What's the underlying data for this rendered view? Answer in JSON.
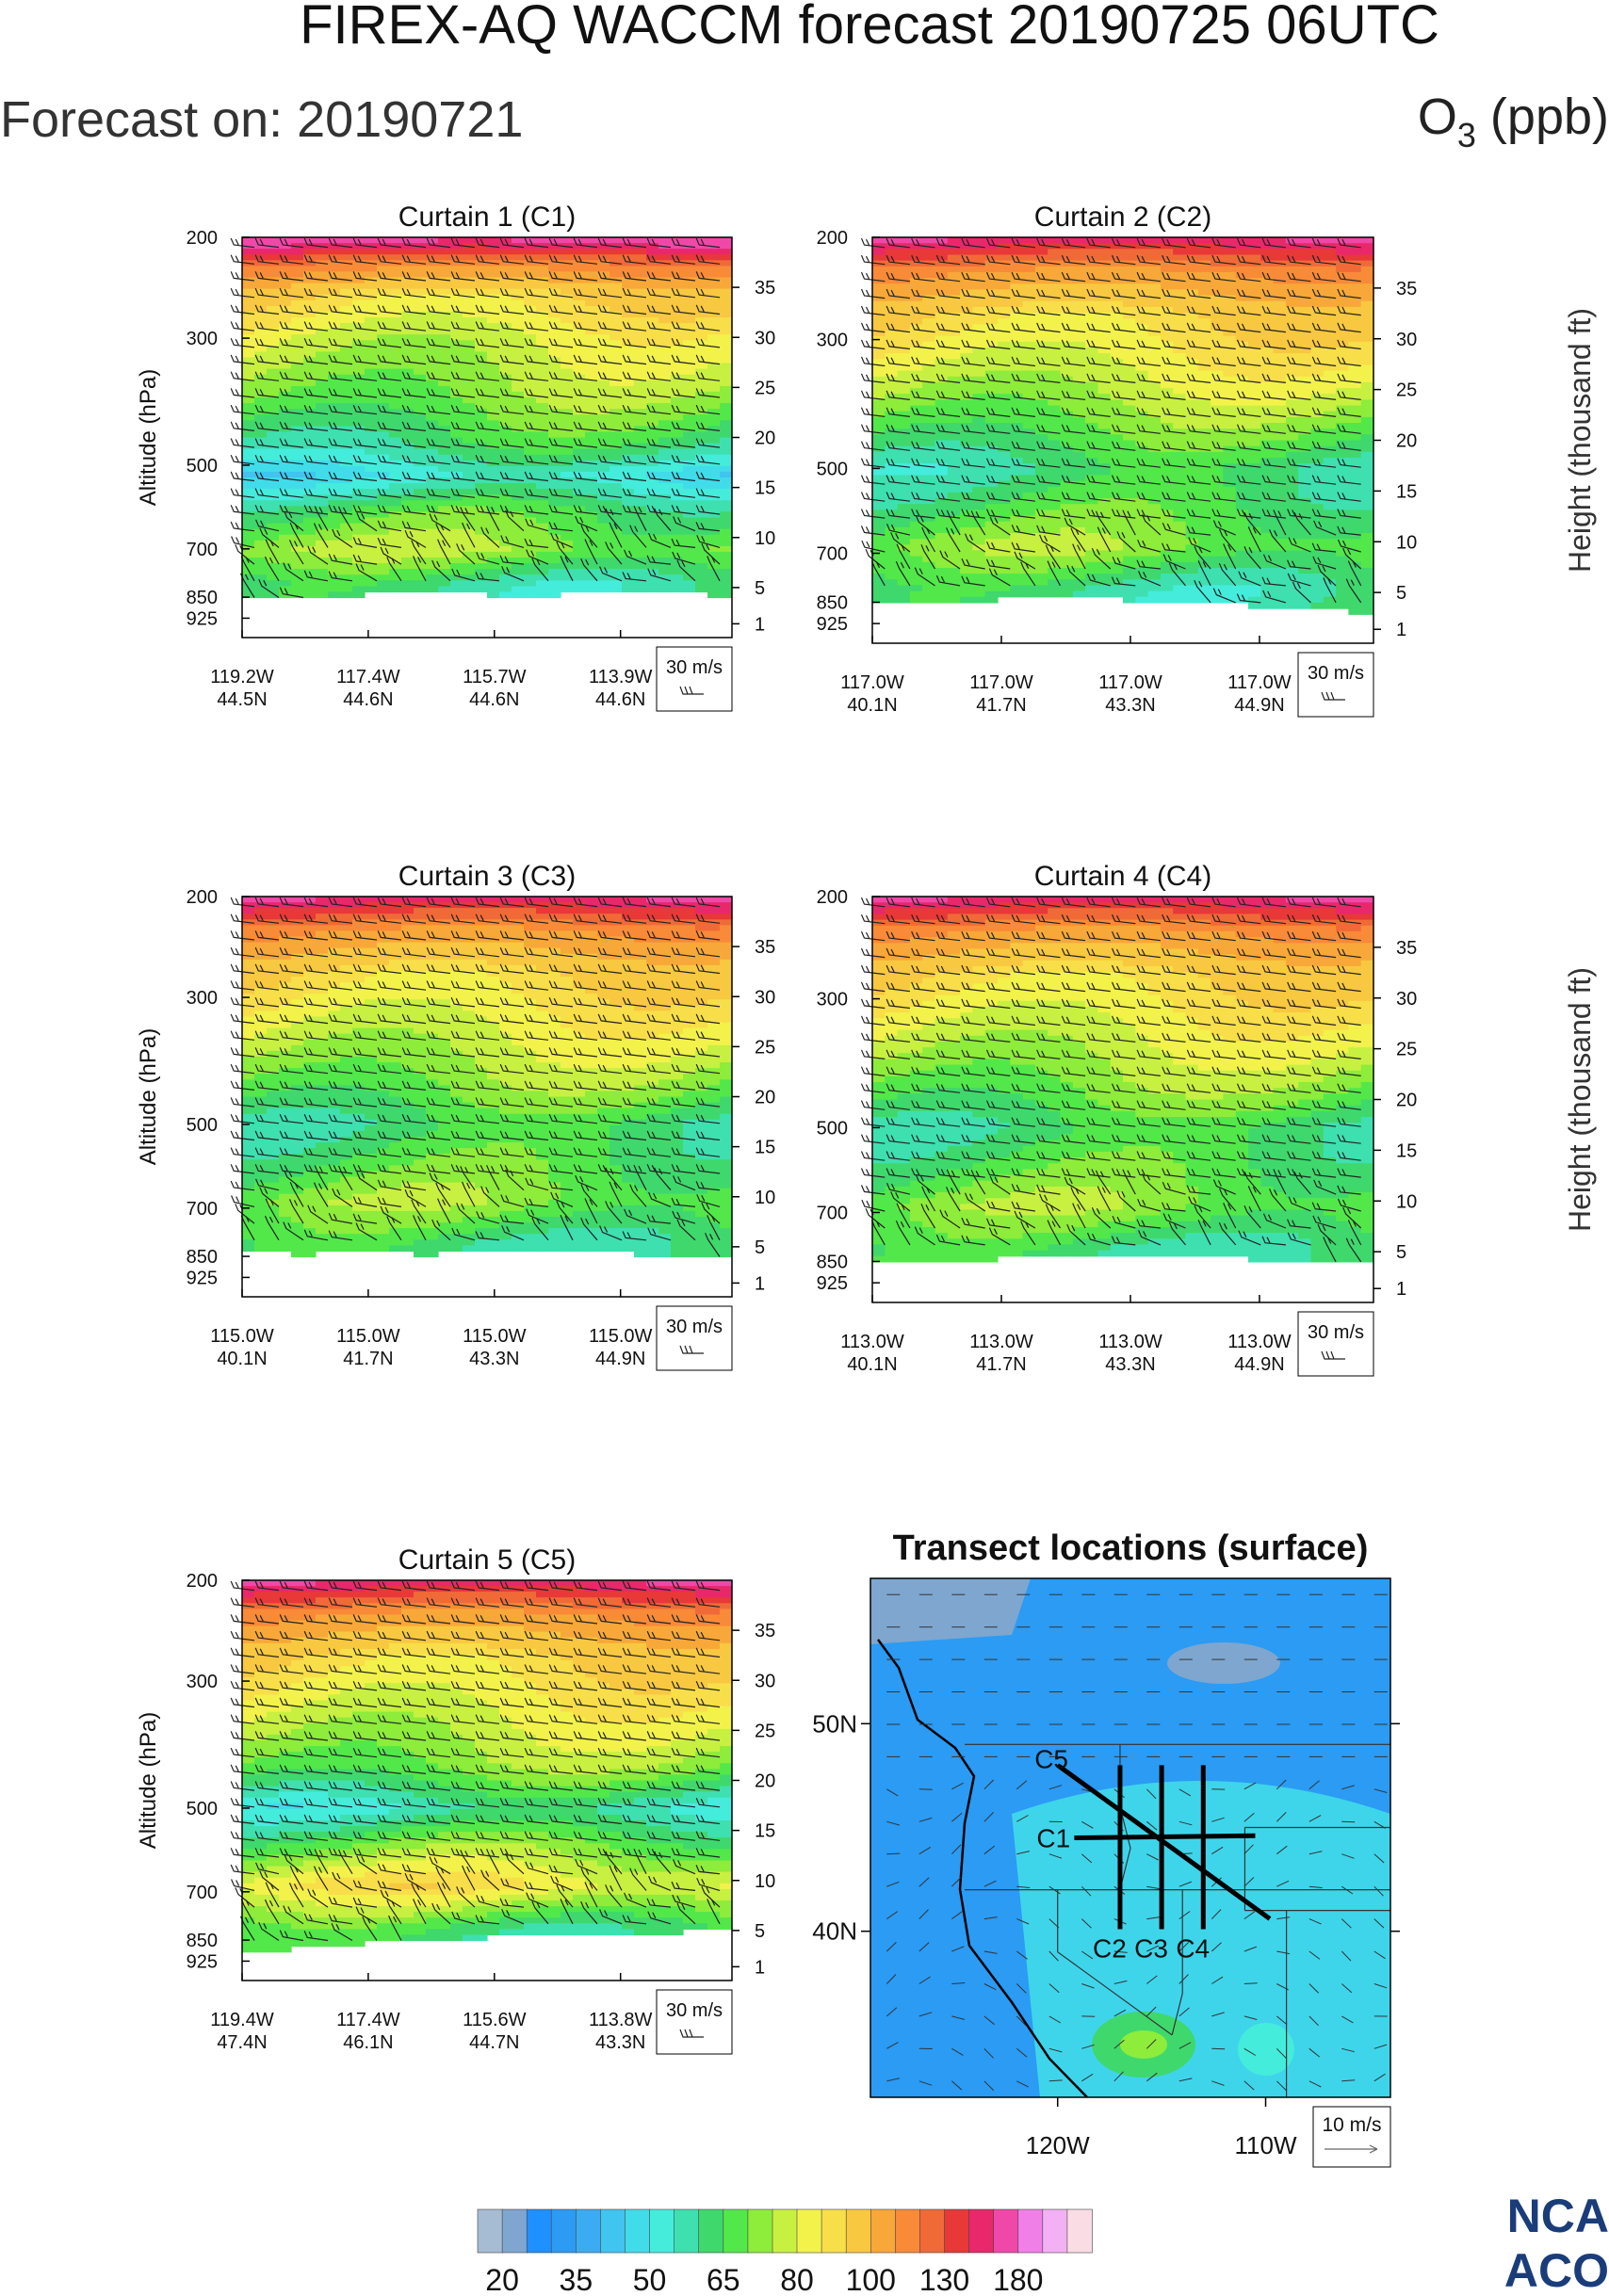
{
  "header": {
    "title": "FIREX-AQ WACCM forecast 20190725 06UTC",
    "forecast_on": "Forecast on: 20190721",
    "species_main": "O",
    "species_sub": "3",
    "species_unit": " (ppb)"
  },
  "chart_data": [
    {
      "type": "heatmap",
      "id": "C1",
      "title": "Curtain 1 (C1)",
      "ylabel": "Altitude (hPa)",
      "y2label": "",
      "pressure_ticks": [
        "200",
        "300",
        "500",
        "700",
        "850",
        "925"
      ],
      "pressure_values": [
        200,
        300,
        500,
        700,
        850,
        925
      ],
      "height_ticks": [
        "35",
        "30",
        "25",
        "20",
        "15",
        "10",
        "5",
        "1"
      ],
      "height_values": [
        35,
        30,
        25,
        20,
        15,
        10,
        5,
        1
      ],
      "x_ticks": [
        [
          "119.2W",
          "44.5N"
        ],
        [
          "117.4W",
          "44.6N"
        ],
        [
          "115.7W",
          "44.6N"
        ],
        [
          "113.9W",
          "44.6N"
        ]
      ],
      "wind_key": "30 m/s",
      "surface_hpa": [
        855,
        860,
        858,
        850,
        845,
        840,
        835,
        830,
        835,
        840,
        845,
        850,
        845,
        838,
        832,
        828,
        825,
        830,
        835,
        850
      ],
      "o3_profile": [
        {
          "p": 200,
          "ppb": 150
        },
        {
          "p": 220,
          "ppb": 110
        },
        {
          "p": 250,
          "ppb": 80
        },
        {
          "p": 300,
          "ppb": 70
        },
        {
          "p": 380,
          "ppb": 62
        },
        {
          "p": 460,
          "ppb": 52
        },
        {
          "p": 520,
          "ppb": 40
        },
        {
          "p": 600,
          "ppb": 55
        },
        {
          "p": 700,
          "ppb": 64
        },
        {
          "p": 800,
          "ppb": 50
        },
        {
          "p": 925,
          "ppb": 48
        }
      ]
    },
    {
      "type": "heatmap",
      "id": "C2",
      "title": "Curtain 2 (C2)",
      "ylabel": "",
      "y2label": "Height (thousand ft)",
      "pressure_ticks": [
        "200",
        "300",
        "500",
        "700",
        "850",
        "925"
      ],
      "pressure_values": [
        200,
        300,
        500,
        700,
        850,
        925
      ],
      "height_ticks": [
        "35",
        "30",
        "25",
        "20",
        "15",
        "10",
        "5",
        "1"
      ],
      "height_values": [
        35,
        30,
        25,
        20,
        15,
        10,
        5,
        1
      ],
      "x_ticks": [
        [
          "117.0W",
          "40.1N"
        ],
        [
          "117.0W",
          "41.7N"
        ],
        [
          "117.0W",
          "43.3N"
        ],
        [
          "117.0W",
          "44.9N"
        ]
      ],
      "wind_key": "30 m/s",
      "surface_hpa": [
        845,
        848,
        850,
        848,
        845,
        840,
        838,
        835,
        835,
        838,
        842,
        846,
        850,
        855,
        858,
        862,
        866,
        870,
        880,
        900
      ],
      "o3_profile": [
        {
          "p": 200,
          "ppb": 140
        },
        {
          "p": 230,
          "ppb": 100
        },
        {
          "p": 270,
          "ppb": 80
        },
        {
          "p": 330,
          "ppb": 72
        },
        {
          "p": 420,
          "ppb": 60
        },
        {
          "p": 500,
          "ppb": 50
        },
        {
          "p": 580,
          "ppb": 55
        },
        {
          "p": 680,
          "ppb": 62
        },
        {
          "p": 800,
          "ppb": 50
        },
        {
          "p": 925,
          "ppb": 48
        }
      ]
    },
    {
      "type": "heatmap",
      "id": "C3",
      "title": "Curtain 3 (C3)",
      "ylabel": "Altitude (hPa)",
      "y2label": "",
      "pressure_ticks": [
        "200",
        "300",
        "500",
        "700",
        "850",
        "925"
      ],
      "pressure_values": [
        200,
        300,
        500,
        700,
        850,
        925
      ],
      "height_ticks": [
        "35",
        "30",
        "25",
        "20",
        "15",
        "10",
        "5",
        "1"
      ],
      "height_values": [
        35,
        30,
        25,
        20,
        15,
        10,
        5,
        1
      ],
      "x_ticks": [
        [
          "115.0W",
          "40.1N"
        ],
        [
          "115.0W",
          "41.7N"
        ],
        [
          "115.0W",
          "43.3N"
        ],
        [
          "115.0W",
          "44.9N"
        ]
      ],
      "wind_key": "30 m/s",
      "surface_hpa": [
        835,
        840,
        842,
        840,
        838,
        836,
        840,
        845,
        838,
        830,
        825,
        828,
        832,
        835,
        838,
        840,
        842,
        845,
        850,
        860
      ],
      "o3_profile": [
        {
          "p": 200,
          "ppb": 140
        },
        {
          "p": 230,
          "ppb": 100
        },
        {
          "p": 270,
          "ppb": 80
        },
        {
          "p": 330,
          "ppb": 72
        },
        {
          "p": 420,
          "ppb": 62
        },
        {
          "p": 500,
          "ppb": 52
        },
        {
          "p": 580,
          "ppb": 56
        },
        {
          "p": 680,
          "ppb": 62
        },
        {
          "p": 800,
          "ppb": 52
        },
        {
          "p": 925,
          "ppb": 48
        }
      ]
    },
    {
      "type": "heatmap",
      "id": "C4",
      "title": "Curtain 4 (C4)",
      "ylabel": "",
      "y2label": "Height (thousand ft)",
      "pressure_ticks": [
        "200",
        "300",
        "500",
        "700",
        "850",
        "925"
      ],
      "pressure_values": [
        200,
        300,
        500,
        700,
        850,
        925
      ],
      "height_ticks": [
        "35",
        "30",
        "25",
        "20",
        "15",
        "10",
        "5",
        "1"
      ],
      "height_values": [
        35,
        30,
        25,
        20,
        15,
        10,
        5,
        1
      ],
      "x_ticks": [
        [
          "113.0W",
          "40.1N"
        ],
        [
          "113.0W",
          "41.7N"
        ],
        [
          "113.0W",
          "43.3N"
        ],
        [
          "113.0W",
          "44.9N"
        ]
      ],
      "wind_key": "30 m/s",
      "surface_hpa": [
        850,
        848,
        846,
        845,
        842,
        840,
        838,
        836,
        835,
        836,
        830,
        826,
        830,
        835,
        840,
        845,
        848,
        850,
        852,
        855
      ],
      "o3_profile": [
        {
          "p": 200,
          "ppb": 140
        },
        {
          "p": 230,
          "ppb": 100
        },
        {
          "p": 270,
          "ppb": 80
        },
        {
          "p": 330,
          "ppb": 72
        },
        {
          "p": 420,
          "ppb": 62
        },
        {
          "p": 500,
          "ppb": 52
        },
        {
          "p": 580,
          "ppb": 56
        },
        {
          "p": 680,
          "ppb": 62
        },
        {
          "p": 800,
          "ppb": 52
        },
        {
          "p": 925,
          "ppb": 48
        }
      ]
    },
    {
      "type": "heatmap",
      "id": "C5",
      "title": "Curtain 5 (C5)",
      "ylabel": "Altitude (hPa)",
      "y2label": "",
      "pressure_ticks": [
        "200",
        "300",
        "500",
        "700",
        "850",
        "925"
      ],
      "pressure_values": [
        200,
        300,
        500,
        700,
        850,
        925
      ],
      "height_ticks": [
        "35",
        "30",
        "25",
        "20",
        "15",
        "10",
        "5",
        "1"
      ],
      "height_values": [
        35,
        30,
        25,
        20,
        15,
        10,
        5,
        1
      ],
      "x_ticks": [
        [
          "119.4W",
          "47.4N"
        ],
        [
          "117.4W",
          "46.1N"
        ],
        [
          "115.6W",
          "44.7N"
        ],
        [
          "113.8W",
          "43.3N"
        ]
      ],
      "wind_key": "30 m/s",
      "surface_hpa": [
        890,
        885,
        878,
        870,
        865,
        860,
        855,
        850,
        848,
        845,
        840,
        838,
        836,
        834,
        832,
        830,
        828,
        826,
        822,
        818
      ],
      "o3_profile": [
        {
          "p": 200,
          "ppb": 140
        },
        {
          "p": 230,
          "ppb": 100
        },
        {
          "p": 270,
          "ppb": 80
        },
        {
          "p": 330,
          "ppb": 72
        },
        {
          "p": 420,
          "ppb": 62
        },
        {
          "p": 500,
          "ppb": 45
        },
        {
          "p": 580,
          "ppb": 60
        },
        {
          "p": 680,
          "ppb": 75
        },
        {
          "p": 800,
          "ppb": 55
        },
        {
          "p": 925,
          "ppb": 48
        }
      ]
    }
  ],
  "map": {
    "title": "Transect locations (surface)",
    "lat_ticks": [
      "50N",
      "40N"
    ],
    "lat_values": [
      50,
      40
    ],
    "lon_ticks": [
      "120W",
      "110W"
    ],
    "lon_values": [
      -120,
      -110
    ],
    "extent": {
      "lon_min": -129,
      "lon_max": -104,
      "lat_min": 32,
      "lat_max": 57
    },
    "wind_key": "10 m/s",
    "transects": [
      {
        "label": "C1",
        "lon": [
          -119.2,
          -110.5
        ],
        "lat": [
          44.5,
          44.6
        ]
      },
      {
        "label": "C2",
        "lon": [
          -117.0,
          -117.0
        ],
        "lat": [
          40.1,
          48.0
        ]
      },
      {
        "label": "C3",
        "lon": [
          -115.0,
          -115.0
        ],
        "lat": [
          40.1,
          48.0
        ]
      },
      {
        "label": "C4",
        "lon": [
          -113.0,
          -113.0
        ],
        "lat": [
          40.1,
          48.0
        ]
      },
      {
        "label": "C5",
        "lon": [
          -120.0,
          -109.8
        ],
        "lat": [
          48.0,
          40.6
        ]
      }
    ]
  },
  "colorbar": {
    "labels": [
      "20",
      "35",
      "50",
      "65",
      "80",
      "100",
      "130",
      "180"
    ],
    "colors": [
      "#a6bcd2",
      "#7ea6cf",
      "#1e90ff",
      "#2b9bf4",
      "#3cacf2",
      "#40c4f0",
      "#40dcea",
      "#44ecdc",
      "#3ee0b0",
      "#3fd86c",
      "#52e84a",
      "#8eec3a",
      "#c8f040",
      "#f2f24a",
      "#f8de48",
      "#f8c840",
      "#f8a838",
      "#f88a38",
      "#f06a38",
      "#e83838",
      "#e8286a",
      "#f048a8",
      "#f080e8",
      "#f4b0f4",
      "#fadce4"
    ]
  },
  "logo": {
    "line1": "NCA",
    "line2": "ACO"
  }
}
